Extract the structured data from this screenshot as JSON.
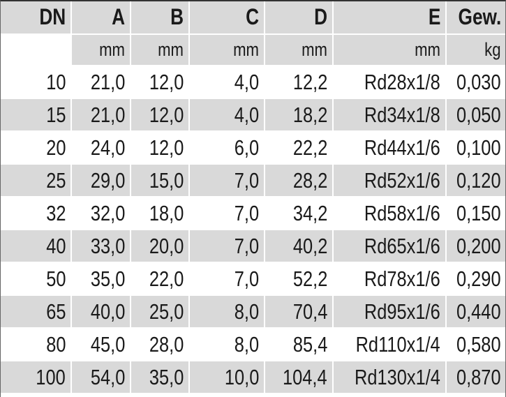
{
  "table": {
    "columns": [
      {
        "label": "DN"
      },
      {
        "label": "A",
        "unit": "mm"
      },
      {
        "label": "B",
        "unit": "mm"
      },
      {
        "label": "C",
        "unit": "mm"
      },
      {
        "label": "D",
        "unit": "mm"
      },
      {
        "label": "E",
        "unit": "mm"
      },
      {
        "label": "Gew.",
        "unit": "kg"
      }
    ],
    "rows": [
      [
        "10",
        "21,0",
        "12,0",
        "4,0",
        "12,2",
        "Rd28x1/8",
        "0,030"
      ],
      [
        "15",
        "21,0",
        "12,0",
        "4,0",
        "18,2",
        "Rd34x1/8",
        "0,050"
      ],
      [
        "20",
        "24,0",
        "12,0",
        "6,0",
        "22,2",
        "Rd44x1/6",
        "0,100"
      ],
      [
        "25",
        "29,0",
        "15,0",
        "7,0",
        "28,2",
        "Rd52x1/6",
        "0,120"
      ],
      [
        "32",
        "32,0",
        "18,0",
        "7,0",
        "34,2",
        "Rd58x1/6",
        "0,150"
      ],
      [
        "40",
        "33,0",
        "20,0",
        "7,0",
        "40,2",
        "Rd65x1/6",
        "0,200"
      ],
      [
        "50",
        "35,0",
        "22,0",
        "7,0",
        "52,2",
        "Rd78x1/6",
        "0,290"
      ],
      [
        "65",
        "40,0",
        "25,0",
        "8,0",
        "70,4",
        "Rd95x1/6",
        "0,440"
      ],
      [
        "80",
        "45,0",
        "28,0",
        "8,0",
        "85,4",
        "Rd110x1/4",
        "0,580"
      ],
      [
        "100",
        "54,0",
        "35,0",
        "10,0",
        "104,4",
        "Rd130x1/4",
        "0,870"
      ]
    ]
  }
}
